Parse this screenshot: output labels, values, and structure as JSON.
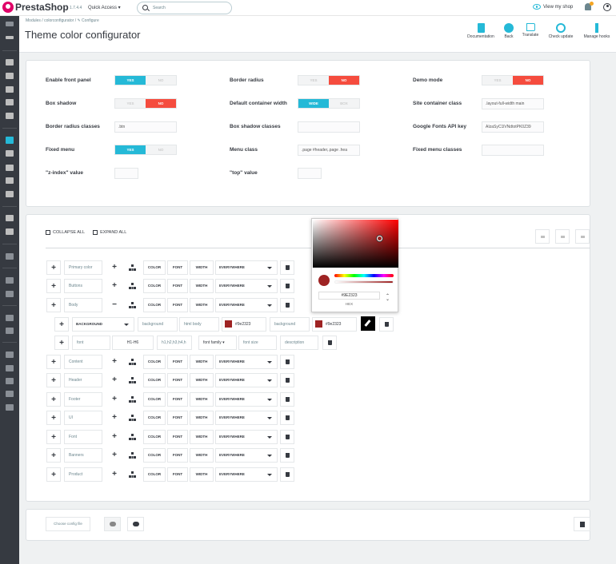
{
  "topbar": {
    "brand": "PrestaShop",
    "version": "1.7.4.4",
    "quick_access": "Quick Access ▾",
    "search_placeholder": "Search",
    "view_shop": "View my shop"
  },
  "header": {
    "breadcrumb": "Modules  /  colorconfigurator  /  ✎ Configure",
    "title": "Theme color configurator",
    "toolbar": [
      {
        "id": "documentation",
        "label": "Documentation",
        "icon": "document-icon"
      },
      {
        "id": "back",
        "label": "Back",
        "icon": "back-arrow-icon"
      },
      {
        "id": "translate",
        "label": "Translate",
        "icon": "flag-icon"
      },
      {
        "id": "check-update",
        "label": "Check update",
        "icon": "refresh-icon"
      },
      {
        "id": "manage-hooks",
        "label": "Manage hooks",
        "icon": "anchor-icon"
      }
    ]
  },
  "settings": {
    "enable_front_panel": {
      "label": "Enable front panel",
      "yes": "YES",
      "no": "NO",
      "value": "YES"
    },
    "border_radius": {
      "label": "Border radius",
      "yes": "YES",
      "no": "NO",
      "value": "NO"
    },
    "demo_mode": {
      "label": "Demo mode",
      "yes": "YES",
      "no": "NO",
      "value": "NO"
    },
    "box_shadow": {
      "label": "Box shadow",
      "yes": "YES",
      "no": "NO",
      "value": "NO"
    },
    "default_container_width": {
      "label": "Default container width",
      "wide": "WIDE",
      "box": "BOX",
      "value": "WIDE"
    },
    "site_container_class": {
      "label": "Site container class",
      "value": ".layout-full-width main"
    },
    "border_radius_classes": {
      "label": "Border radius classes",
      "value": ".btn"
    },
    "box_shadow_classes": {
      "label": "Box shadow classes",
      "value": ""
    },
    "google_fonts_api_key": {
      "label": "Google Fonts API key",
      "value": "AIzaSyC1lVNdtotPK0Z39"
    },
    "fixed_menu": {
      "label": "Fixed menu",
      "yes": "YES",
      "no": "NO",
      "value": "YES"
    },
    "menu_class": {
      "label": "Menu class",
      "value": ".page #header,.page .hea"
    },
    "fixed_menu_classes": {
      "label": "Fixed menu classes",
      "value": ""
    },
    "z_index": {
      "label": "\"z-index\" value",
      "value": ""
    },
    "top": {
      "label": "\"top\" value",
      "value": ""
    }
  },
  "tree": {
    "collapse_all": "COLLAPSE ALL",
    "expand_all": "EXPAND ALL",
    "col_color": "COLOR",
    "col_font": "FONT",
    "col_width": "WIDTH",
    "col_scope": "EVERYWHERE",
    "groups": [
      "Primary color",
      "Buttons",
      "Body",
      "Content",
      "Header",
      "Footer",
      "UI",
      "Font",
      "Banners",
      "Product"
    ],
    "body_color_row": {
      "property": "BACKGROUND",
      "name": "background",
      "selector": "html body",
      "hex1": "#9e2323",
      "target": "background",
      "hex2": "#9e2323"
    },
    "body_font_row": {
      "property": "font",
      "tags": "H1-H6",
      "selector": "h1,h2,h3,h4,h",
      "family": "font family ▾",
      "size": "font size",
      "description": "description"
    }
  },
  "picker": {
    "hex": "#9E2323",
    "mode": "HEX",
    "color": "#9e2323"
  },
  "footer": {
    "choose_file": "Choose config file"
  }
}
